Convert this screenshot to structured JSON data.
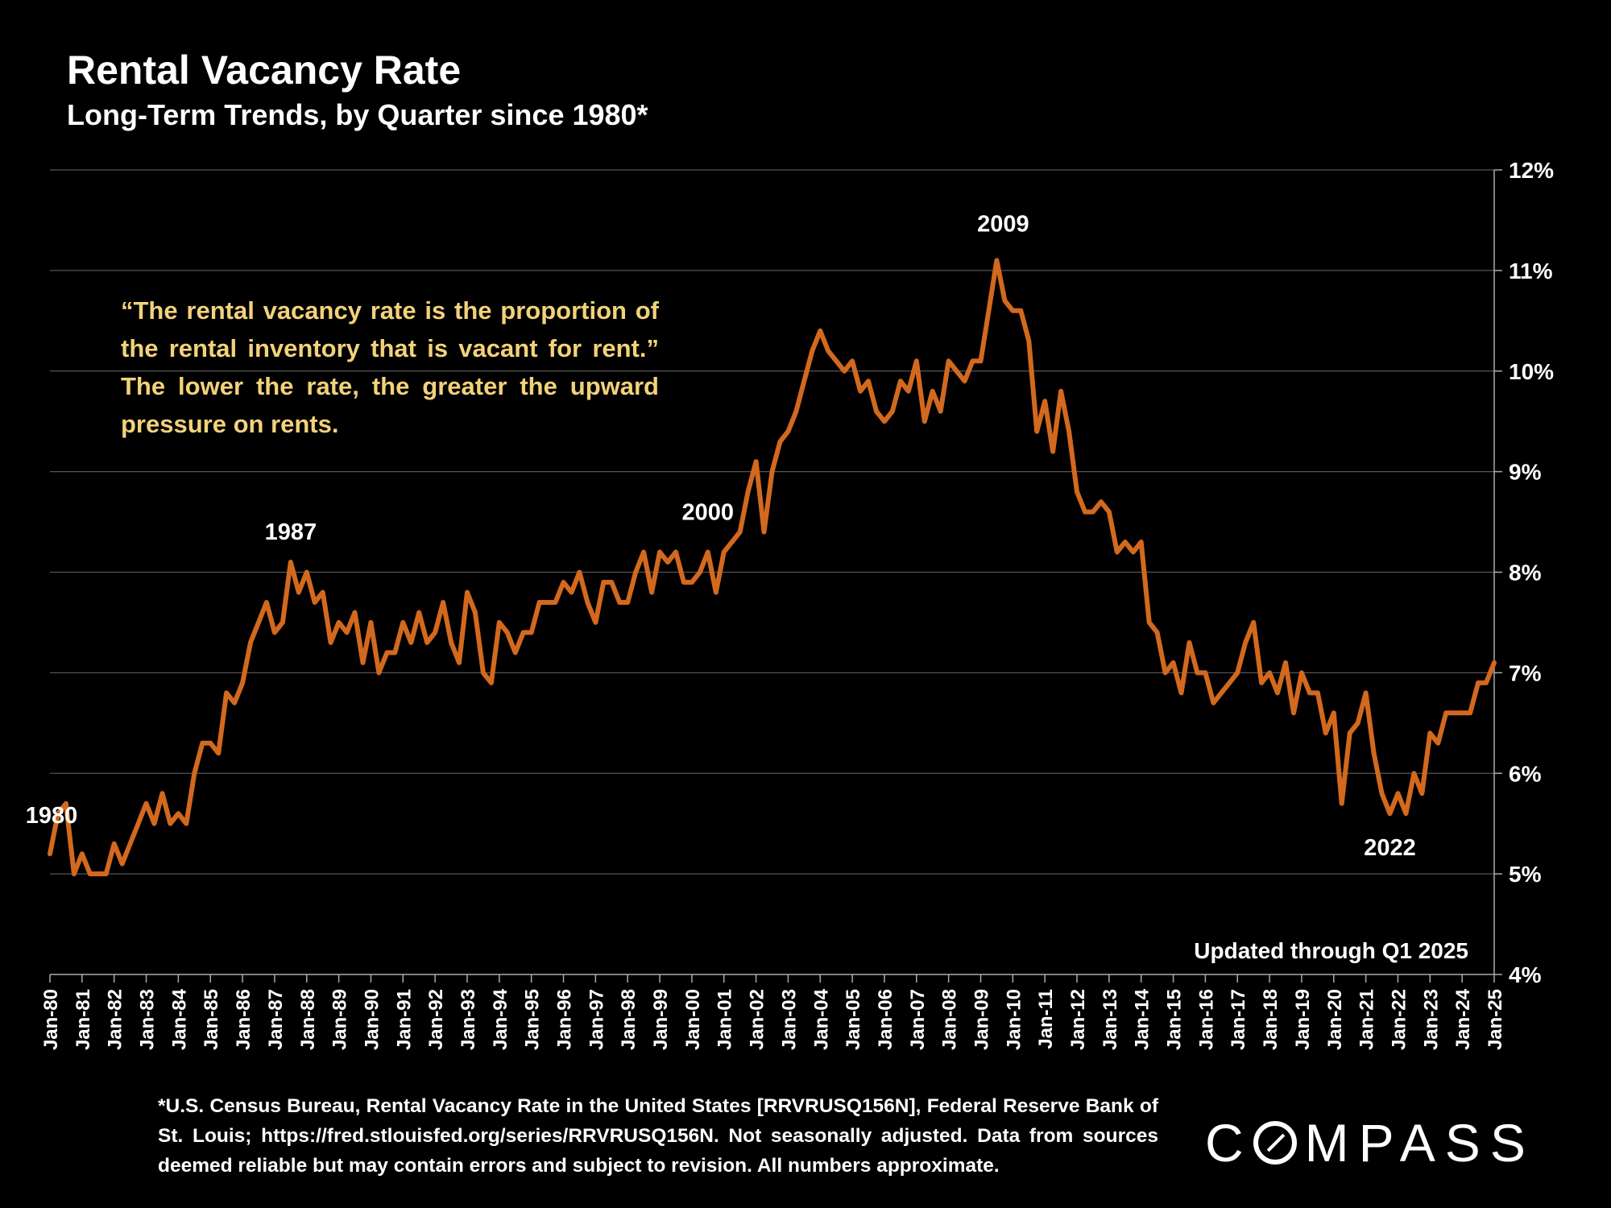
{
  "header": {
    "title": "Rental Vacancy Rate",
    "subtitle": "Long-Term Trends, by Quarter since 1980*"
  },
  "quote": "“The rental vacancy rate is the proportion of the rental inventory that is vacant for rent.” The lower the rate, the greater the upward pressure on rents.",
  "footnote": "*U.S. Census Bureau, Rental Vacancy Rate in the United States [RRVRUSQ156N], Federal Reserve Bank of St. Louis; https://fred.stlouisfed.org/series/RRVRUSQ156N. Not seasonally adjusted. Data from sources deemed reliable but may contain errors and subject to revision. All numbers approximate.",
  "brand": {
    "name": "COMPASS",
    "pre": "C",
    "post": "MPASS"
  },
  "colors": {
    "background": "#000000",
    "line": "#d2691e",
    "quote": "#f2d27a",
    "grid": "#555555"
  },
  "chart_data": {
    "type": "line",
    "title": "Rental Vacancy Rate",
    "xlabel": "",
    "ylabel": "",
    "ylim": [
      4,
      12
    ],
    "yticks": [
      "4%",
      "5%",
      "6%",
      "7%",
      "8%",
      "9%",
      "10%",
      "11%",
      "12%"
    ],
    "y_axis_side": "right",
    "xticks": [
      "Jan-80",
      "Jan-81",
      "Jan-82",
      "Jan-83",
      "Jan-84",
      "Jan-85",
      "Jan-86",
      "Jan-87",
      "Jan-88",
      "Jan-89",
      "Jan-90",
      "Jan-91",
      "Jan-92",
      "Jan-93",
      "Jan-94",
      "Jan-95",
      "Jan-96",
      "Jan-97",
      "Jan-98",
      "Jan-99",
      "Jan-00",
      "Jan-01",
      "Jan-02",
      "Jan-03",
      "Jan-04",
      "Jan-05",
      "Jan-06",
      "Jan-07",
      "Jan-08",
      "Jan-09",
      "Jan-10",
      "Jan-11",
      "Jan-12",
      "Jan-13",
      "Jan-14",
      "Jan-15",
      "Jan-16",
      "Jan-17",
      "Jan-18",
      "Jan-19",
      "Jan-20",
      "Jan-21",
      "Jan-22",
      "Jan-23",
      "Jan-24",
      "Jan-25"
    ],
    "x_start_year": 1980,
    "series": [
      {
        "name": "Rental Vacancy Rate",
        "values": [
          5.2,
          5.6,
          5.7,
          5.0,
          5.2,
          5.0,
          5.0,
          5.0,
          5.3,
          5.1,
          5.3,
          5.5,
          5.7,
          5.5,
          5.8,
          5.5,
          5.6,
          5.5,
          6.0,
          6.3,
          6.3,
          6.2,
          6.8,
          6.7,
          6.9,
          7.3,
          7.5,
          7.7,
          7.4,
          7.5,
          8.1,
          7.8,
          8.0,
          7.7,
          7.8,
          7.3,
          7.5,
          7.4,
          7.6,
          7.1,
          7.5,
          7.0,
          7.2,
          7.2,
          7.5,
          7.3,
          7.6,
          7.3,
          7.4,
          7.7,
          7.3,
          7.1,
          7.8,
          7.6,
          7.0,
          6.9,
          7.5,
          7.4,
          7.2,
          7.4,
          7.4,
          7.7,
          7.7,
          7.7,
          7.9,
          7.8,
          8.0,
          7.7,
          7.5,
          7.9,
          7.9,
          7.7,
          7.7,
          8.0,
          8.2,
          7.8,
          8.2,
          8.1,
          8.2,
          7.9,
          7.9,
          8.0,
          8.2,
          7.8,
          8.2,
          8.3,
          8.4,
          8.8,
          9.1,
          8.4,
          9.0,
          9.3,
          9.4,
          9.6,
          9.9,
          10.2,
          10.4,
          10.2,
          10.1,
          10.0,
          10.1,
          9.8,
          9.9,
          9.6,
          9.5,
          9.6,
          9.9,
          9.8,
          10.1,
          9.5,
          9.8,
          9.6,
          10.1,
          10.0,
          9.9,
          10.1,
          10.1,
          10.6,
          11.1,
          10.7,
          10.6,
          10.6,
          10.3,
          9.4,
          9.7,
          9.2,
          9.8,
          9.4,
          8.8,
          8.6,
          8.6,
          8.7,
          8.6,
          8.2,
          8.3,
          8.2,
          8.3,
          7.5,
          7.4,
          7.0,
          7.1,
          6.8,
          7.3,
          7.0,
          7.0,
          6.7,
          6.8,
          6.9,
          7.0,
          7.3,
          7.5,
          6.9,
          7.0,
          6.8,
          7.1,
          6.6,
          7.0,
          6.8,
          6.8,
          6.4,
          6.6,
          5.7,
          6.4,
          6.5,
          6.8,
          6.2,
          5.8,
          5.6,
          5.8,
          5.6,
          6.0,
          5.8,
          6.4,
          6.3,
          6.6,
          6.6,
          6.6,
          6.6,
          6.9,
          6.9,
          7.1
        ]
      }
    ],
    "annotations": [
      {
        "label": "1980",
        "index": 0
      },
      {
        "label": "1987",
        "index": 30
      },
      {
        "label": "2000",
        "index": 82
      },
      {
        "label": "2009",
        "index": 118
      },
      {
        "label": "2022",
        "index": 167
      }
    ],
    "note": "Updated through Q1 2025"
  }
}
